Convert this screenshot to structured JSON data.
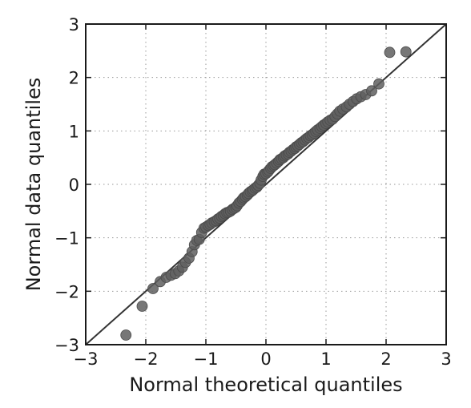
{
  "chart_data": {
    "type": "scatter",
    "title": "",
    "xlabel": "Normal theoretical quantiles",
    "ylabel": "Normal data quantiles",
    "xlim": [
      -3,
      3
    ],
    "ylim": [
      -3,
      3
    ],
    "xticks": [
      "−3",
      "−2",
      "−1",
      "0",
      "1",
      "2",
      "3"
    ],
    "yticks": [
      "−3",
      "−2",
      "−1",
      "0",
      "1",
      "2",
      "3"
    ],
    "grid": true,
    "reference_line": {
      "from": [
        -3,
        -3
      ],
      "to": [
        3,
        3
      ]
    },
    "marker_color": "#5f5f5f",
    "line_color": "#333333",
    "series": [
      {
        "points": [
          [
            -2.33,
            -2.82
          ],
          [
            -2.06,
            -2.28
          ],
          [
            -1.88,
            -1.95
          ],
          [
            -1.76,
            -1.82
          ],
          [
            -1.66,
            -1.74
          ],
          [
            -1.58,
            -1.7
          ],
          [
            -1.51,
            -1.67
          ],
          [
            -1.45,
            -1.62
          ],
          [
            -1.39,
            -1.55
          ],
          [
            -1.34,
            -1.46
          ],
          [
            -1.28,
            -1.38
          ],
          [
            -1.23,
            -1.26
          ],
          [
            -1.19,
            -1.13
          ],
          [
            -1.15,
            -1.05
          ],
          [
            -1.11,
            -1.03
          ],
          [
            -1.07,
            -0.9
          ],
          [
            -1.03,
            -0.82
          ],
          [
            -1.0,
            -0.8
          ],
          [
            -0.96,
            -0.77
          ],
          [
            -0.93,
            -0.75
          ],
          [
            -0.9,
            -0.72
          ],
          [
            -0.86,
            -0.7
          ],
          [
            -0.83,
            -0.68
          ],
          [
            -0.8,
            -0.65
          ],
          [
            -0.77,
            -0.63
          ],
          [
            -0.74,
            -0.6
          ],
          [
            -0.71,
            -0.58
          ],
          [
            -0.68,
            -0.55
          ],
          [
            -0.65,
            -0.53
          ],
          [
            -0.62,
            -0.52
          ],
          [
            -0.59,
            -0.5
          ],
          [
            -0.56,
            -0.47
          ],
          [
            -0.53,
            -0.45
          ],
          [
            -0.5,
            -0.43
          ],
          [
            -0.48,
            -0.4
          ],
          [
            -0.45,
            -0.35
          ],
          [
            -0.42,
            -0.32
          ],
          [
            -0.39,
            -0.28
          ],
          [
            -0.37,
            -0.25
          ],
          [
            -0.34,
            -0.23
          ],
          [
            -0.31,
            -0.2
          ],
          [
            -0.29,
            -0.17
          ],
          [
            -0.26,
            -0.14
          ],
          [
            -0.23,
            -0.12
          ],
          [
            -0.21,
            -0.1
          ],
          [
            -0.18,
            -0.07
          ],
          [
            -0.15,
            -0.05
          ],
          [
            -0.13,
            -0.02
          ],
          [
            -0.1,
            0.02
          ],
          [
            -0.08,
            0.08
          ],
          [
            -0.05,
            0.15
          ],
          [
            -0.03,
            0.19
          ],
          [
            0.0,
            0.2
          ],
          [
            0.03,
            0.23
          ],
          [
            0.05,
            0.26
          ],
          [
            0.08,
            0.3
          ],
          [
            0.1,
            0.33
          ],
          [
            0.13,
            0.35
          ],
          [
            0.15,
            0.37
          ],
          [
            0.18,
            0.4
          ],
          [
            0.21,
            0.43
          ],
          [
            0.23,
            0.46
          ],
          [
            0.26,
            0.48
          ],
          [
            0.29,
            0.5
          ],
          [
            0.31,
            0.53
          ],
          [
            0.34,
            0.55
          ],
          [
            0.37,
            0.57
          ],
          [
            0.39,
            0.6
          ],
          [
            0.42,
            0.62
          ],
          [
            0.45,
            0.65
          ],
          [
            0.48,
            0.67
          ],
          [
            0.5,
            0.7
          ],
          [
            0.53,
            0.72
          ],
          [
            0.56,
            0.75
          ],
          [
            0.59,
            0.78
          ],
          [
            0.62,
            0.8
          ],
          [
            0.65,
            0.83
          ],
          [
            0.68,
            0.86
          ],
          [
            0.71,
            0.88
          ],
          [
            0.74,
            0.91
          ],
          [
            0.77,
            0.93
          ],
          [
            0.8,
            0.96
          ],
          [
            0.83,
            0.99
          ],
          [
            0.86,
            1.02
          ],
          [
            0.9,
            1.05
          ],
          [
            0.93,
            1.08
          ],
          [
            0.96,
            1.11
          ],
          [
            1.0,
            1.14
          ],
          [
            1.03,
            1.17
          ],
          [
            1.07,
            1.2
          ],
          [
            1.11,
            1.22
          ],
          [
            1.15,
            1.27
          ],
          [
            1.19,
            1.32
          ],
          [
            1.23,
            1.37
          ],
          [
            1.28,
            1.41
          ],
          [
            1.34,
            1.45
          ],
          [
            1.39,
            1.5
          ],
          [
            1.45,
            1.55
          ],
          [
            1.51,
            1.6
          ],
          [
            1.58,
            1.64
          ],
          [
            1.66,
            1.68
          ],
          [
            1.76,
            1.75
          ],
          [
            1.88,
            1.88
          ],
          [
            2.06,
            2.47
          ],
          [
            2.33,
            2.48
          ]
        ]
      }
    ]
  }
}
